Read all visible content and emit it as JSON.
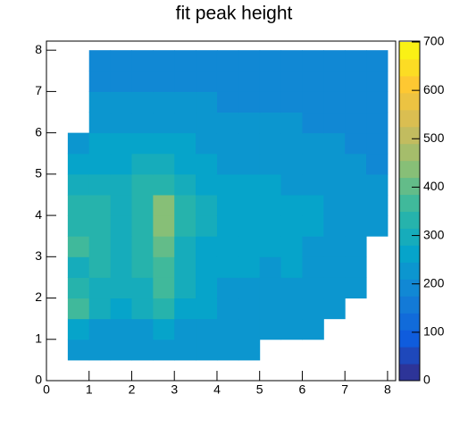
{
  "chart_data": {
    "type": "heatmap",
    "title": "fit peak height",
    "xbins": [
      0.5,
      1.0,
      1.5,
      2.0,
      2.5,
      3.0,
      3.5,
      4.0,
      4.5,
      5.0,
      5.5,
      6.0,
      6.5,
      7.0,
      7.5,
      8.0
    ],
    "ybins": [
      0.5,
      1.0,
      1.5,
      2.0,
      2.5,
      3.0,
      3.5,
      4.0,
      4.5,
      5.0,
      5.5,
      6.0,
      6.5,
      7.0,
      7.5,
      8.0
    ],
    "z": [
      [
        210,
        220,
        220,
        220,
        230,
        230,
        230,
        230,
        220,
        null,
        null,
        null,
        null,
        null,
        null
      ],
      [
        260,
        240,
        230,
        240,
        250,
        240,
        240,
        230,
        230,
        220,
        230,
        220,
        null,
        null,
        null
      ],
      [
        380,
        300,
        260,
        280,
        320,
        260,
        250,
        240,
        240,
        230,
        230,
        230,
        220,
        null,
        null
      ],
      [
        330,
        300,
        280,
        300,
        350,
        280,
        250,
        240,
        240,
        240,
        240,
        230,
        230,
        210,
        null
      ],
      [
        300,
        320,
        290,
        320,
        380,
        290,
        260,
        250,
        250,
        240,
        250,
        240,
        230,
        220,
        null
      ],
      [
        350,
        330,
        300,
        320,
        400,
        300,
        270,
        250,
        250,
        250,
        250,
        240,
        240,
        230,
        null
      ],
      [
        340,
        330,
        310,
        330,
        430,
        320,
        280,
        260,
        260,
        250,
        250,
        250,
        240,
        240,
        220
      ],
      [
        330,
        320,
        310,
        340,
        420,
        330,
        280,
        260,
        260,
        260,
        250,
        250,
        240,
        230,
        220
      ],
      [
        300,
        300,
        290,
        320,
        340,
        300,
        270,
        250,
        250,
        250,
        240,
        240,
        230,
        220,
        210
      ],
      [
        260,
        270,
        270,
        290,
        290,
        270,
        250,
        240,
        240,
        240,
        230,
        230,
        220,
        210,
        200
      ],
      [
        240,
        250,
        250,
        260,
        260,
        250,
        240,
        230,
        230,
        220,
        220,
        210,
        210,
        200,
        200
      ],
      [
        null,
        230,
        230,
        230,
        230,
        230,
        220,
        220,
        210,
        210,
        210,
        200,
        200,
        200,
        190
      ],
      [
        null,
        210,
        210,
        210,
        210,
        210,
        210,
        200,
        200,
        200,
        200,
        190,
        190,
        190,
        190
      ],
      [
        null,
        200,
        200,
        200,
        200,
        190,
        190,
        190,
        190,
        190,
        190,
        190,
        190,
        190,
        190
      ],
      [
        null,
        190,
        190,
        190,
        190,
        190,
        190,
        190,
        190,
        190,
        190,
        190,
        190,
        190,
        190
      ]
    ],
    "xlim": [
      0,
      8.19
    ],
    "xticks": [
      0,
      1,
      2,
      3,
      4,
      5,
      6,
      7,
      8
    ],
    "ylim": [
      0,
      8.22
    ],
    "yticks": [
      0,
      1,
      2,
      3,
      4,
      5,
      6,
      7,
      8
    ],
    "zlim": [
      0,
      700
    ],
    "zticks": [
      0,
      100,
      200,
      300,
      400,
      500,
      600,
      700
    ],
    "colorscale": [
      "#352a87",
      "#0f5cdd",
      "#1481d6",
      "#06a4ca",
      "#2eb7a4",
      "#87bf77",
      "#d1bb59",
      "#fec832",
      "#f9fb0e"
    ],
    "levels": 20
  }
}
